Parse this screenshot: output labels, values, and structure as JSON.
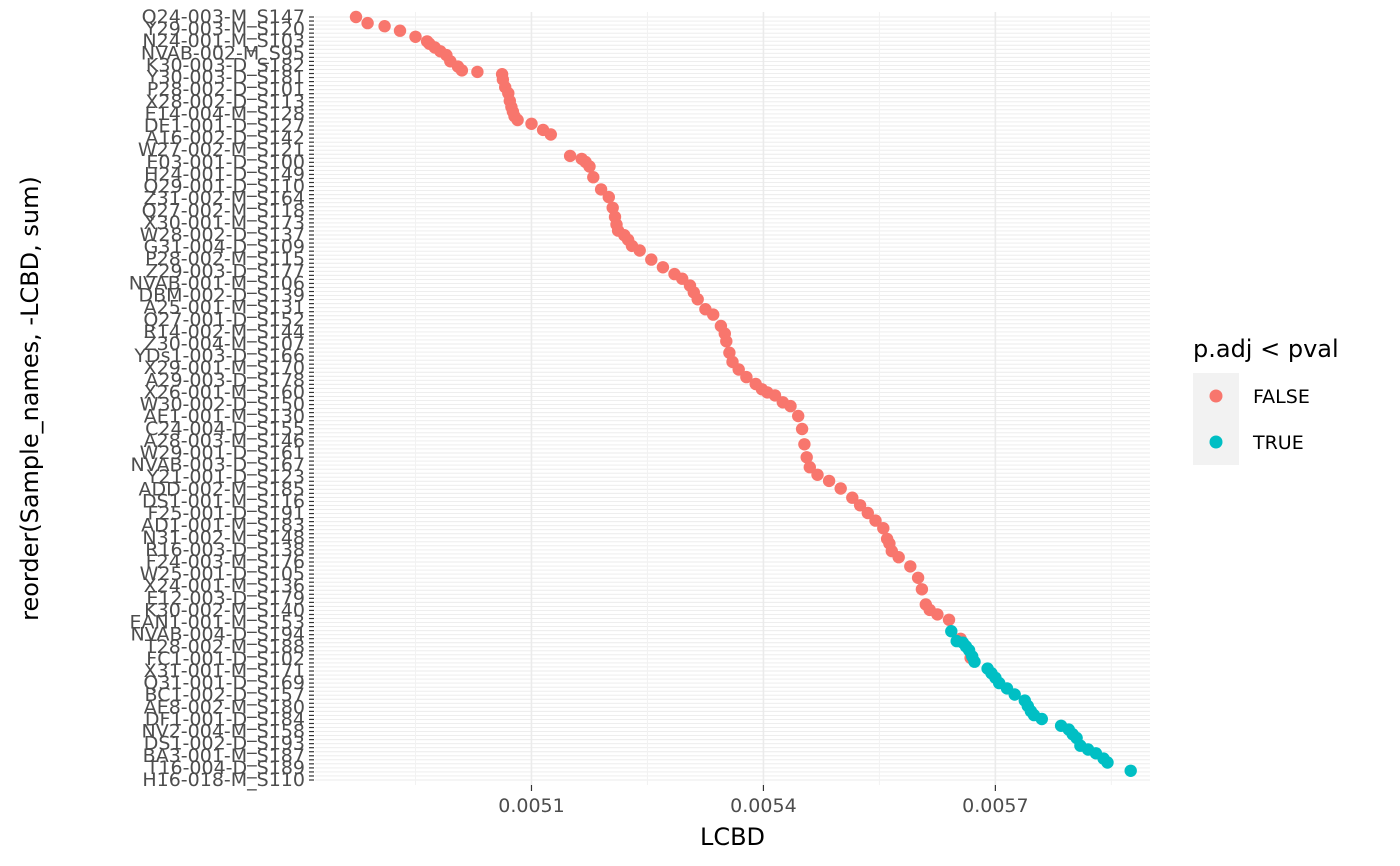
{
  "chart_data": {
    "type": "scatter",
    "xlabel": "LCBD",
    "ylabel": "reorder(Sample_names, -LCBD, sum)",
    "xlim": [
      0.00482,
      0.0059
    ],
    "x_ticks": [
      "0.0051",
      "0.0054",
      "0.0057"
    ],
    "x_tick_values": [
      0.0051,
      0.0054,
      0.0057
    ],
    "legend": {
      "title": "p.adj < pval",
      "position": "right",
      "entries": [
        {
          "label": "FALSE",
          "color": "#F8766D"
        },
        {
          "label": "TRUE",
          "color": "#00BFC4"
        }
      ]
    },
    "y_tick_labels": [
      "Q24-003-M_S147",
      "Y29-003-M_S120",
      "N24-001-M_S103",
      "NVAB-002-M_S95",
      "K30-003-D_S182",
      "Y30-003-D_S181",
      "P28-002-D_S101",
      "X28-002-D_S113",
      "E14-004-M_S128",
      "DE1-001-D_S127",
      "A16-002-D_S142",
      "W27-002-M_S121",
      "E03-001-D_S100",
      "H24-001-D_S149",
      "Q29-001-D_S110",
      "Z31-002-M_S164",
      "Q27-002-M_S118",
      "X30-001-M_S173",
      "W28-002-D_S137",
      "G31-004-D_S109",
      "P28-002-M_S115",
      "Z29-003-D_S177",
      "NVAB-001-M_S106",
      "DBM-002-D_S139",
      "A25-001-M_S131",
      "Q27-001-D_S152",
      "R14-002-M_S144",
      "Z30-004-M_S107",
      "YDs1-003-D_S166",
      "X29-001-M_S170",
      "A29-003-D_S178",
      "X26-001-M_S160",
      "W30-002-D_S150",
      "AE1-001-M_S130",
      "C24-004-D_S155",
      "A28-003-M_S146",
      "W29-001-D_S161",
      "NVAB-003-D_S167",
      "Y21-001-D_S123",
      "ADD-002-M_S185",
      "DS1-001-M_S116",
      "F25-001-D_S191",
      "AD1-001-M_S183",
      "N31-002-M_S148",
      "R16-003-D_S138",
      "F24-003-M_S176",
      "W25-001-D_S105",
      "X24-001-M_S136",
      "E12-003-D_S179",
      "K30-002-M_S140",
      "EAN1-001-M_S153",
      "NVAB-004-D_S194",
      "T28-002-M_S188",
      "FC1-001-D_S102",
      "X31-001-M_S171",
      "Q31-001-D_S169",
      "BC1-002-D_S157",
      "AE8-002-M_S180",
      "DF1-001-D_S184",
      "NV2-004-M_S158",
      "DS1-002-D_S193",
      "BA3-001-M_S187",
      "T16-004-D_S189",
      "H16-018-M_S110"
    ],
    "series": [
      {
        "name": "FALSE",
        "x": [
          0.004873,
          0.004888,
          0.00491,
          0.00493,
          0.00495,
          0.004965,
          0.004968,
          0.004975,
          0.004982,
          0.00499,
          0.004995,
          0.005005,
          0.00501,
          0.00503,
          0.005062,
          0.005063,
          0.005066,
          0.00507,
          0.005072,
          0.005074,
          0.005076,
          0.005078,
          0.005082,
          0.0051,
          0.005115,
          0.005125,
          0.00515,
          0.005165,
          0.00517,
          0.005175,
          0.00518,
          0.00519,
          0.0052,
          0.005205,
          0.005208,
          0.00521,
          0.005212,
          0.00522,
          0.005225,
          0.00523,
          0.00524,
          0.005255,
          0.00527,
          0.005285,
          0.005295,
          0.005305,
          0.00531,
          0.005315,
          0.005325,
          0.005335,
          0.005345,
          0.00535,
          0.005352,
          0.005356,
          0.00536,
          0.005368,
          0.005378,
          0.00539,
          0.005398,
          0.005405,
          0.005415,
          0.005425,
          0.005435,
          0.005445,
          0.00545,
          0.005453,
          0.005456,
          0.00546,
          0.00547,
          0.005485,
          0.0055,
          0.005515,
          0.005525,
          0.005535,
          0.005545,
          0.005555,
          0.00556,
          0.005563,
          0.005566,
          0.005575,
          0.00559,
          0.0056,
          0.005605,
          0.00561,
          0.005615,
          0.005625,
          0.00564,
          0.005655,
          0.005668
        ],
        "y_rank": [
          0.0,
          0.008,
          0.012,
          0.018,
          0.026,
          0.032,
          0.035,
          0.04,
          0.045,
          0.05,
          0.058,
          0.065,
          0.07,
          0.072,
          0.075,
          0.082,
          0.092,
          0.1,
          0.11,
          0.118,
          0.124,
          0.13,
          0.135,
          0.14,
          0.148,
          0.154,
          0.182,
          0.186,
          0.19,
          0.196,
          0.21,
          0.226,
          0.236,
          0.25,
          0.262,
          0.272,
          0.28,
          0.286,
          0.292,
          0.3,
          0.306,
          0.318,
          0.328,
          0.337,
          0.343,
          0.352,
          0.361,
          0.37,
          0.383,
          0.39,
          0.405,
          0.415,
          0.425,
          0.44,
          0.452,
          0.462,
          0.472,
          0.481,
          0.488,
          0.492,
          0.496,
          0.505,
          0.51,
          0.523,
          0.54,
          0.56,
          0.577,
          0.59,
          0.6,
          0.608,
          0.618,
          0.63,
          0.64,
          0.65,
          0.66,
          0.67,
          0.684,
          0.69,
          0.7,
          0.708,
          0.72,
          0.735,
          0.75,
          0.77,
          0.777,
          0.783,
          0.79,
          0.815,
          0.84
        ]
      },
      {
        "name": "TRUE",
        "x": [
          0.005643,
          0.00565,
          0.005658,
          0.005662,
          0.005666,
          0.00567,
          0.005673,
          0.00569,
          0.005695,
          0.0057,
          0.005705,
          0.005715,
          0.005725,
          0.005738,
          0.005742,
          0.005746,
          0.00575,
          0.00576,
          0.005785,
          0.005795,
          0.0058,
          0.005805,
          0.00581,
          0.00582,
          0.00583,
          0.00584,
          0.005845,
          0.005875
        ],
        "y_rank": [
          0.805,
          0.818,
          0.82,
          0.825,
          0.83,
          0.838,
          0.845,
          0.854,
          0.86,
          0.866,
          0.873,
          0.88,
          0.888,
          0.896,
          0.903,
          0.91,
          0.915,
          0.92,
          0.929,
          0.934,
          0.94,
          0.945,
          0.955,
          0.96,
          0.965,
          0.972,
          0.977,
          0.988
        ]
      }
    ]
  }
}
